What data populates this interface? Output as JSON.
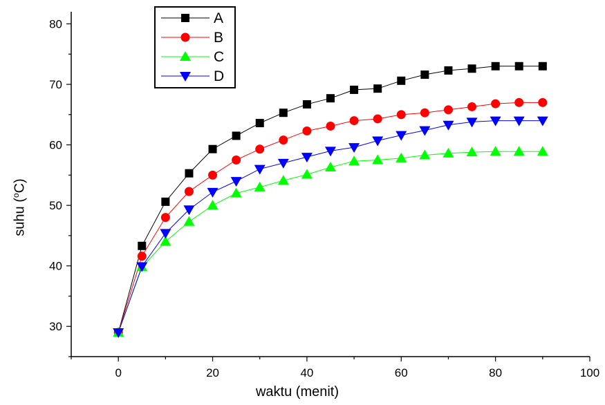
{
  "colors": {
    "A": "#000000",
    "B": "#ff0000",
    "C": "#00ff00",
    "D": "#0000ff",
    "axis": "#000000"
  },
  "chart_data": {
    "type": "line",
    "xlabel": "waktu (menit)",
    "ylabel_prefix": "suhu (",
    "ylabel_sup": "o",
    "ylabel_suffix": "C)",
    "xlim": [
      -10,
      100
    ],
    "ylim": [
      25,
      82
    ],
    "xticks": [
      0,
      20,
      40,
      60,
      80,
      100
    ],
    "yticks": [
      30,
      40,
      50,
      60,
      70,
      80
    ],
    "x": [
      0,
      5,
      10,
      15,
      20,
      25,
      30,
      35,
      40,
      45,
      50,
      55,
      60,
      65,
      70,
      75,
      80,
      85,
      90
    ],
    "series": [
      {
        "name": "A",
        "marker": "square",
        "values": [
          29,
          43.3,
          50.6,
          55.3,
          59.3,
          61.5,
          63.6,
          65.3,
          66.7,
          67.7,
          69.1,
          69.3,
          70.6,
          71.6,
          72.3,
          72.6,
          73,
          73,
          73
        ]
      },
      {
        "name": "B",
        "marker": "circle",
        "values": [
          29,
          41.6,
          48,
          52.3,
          55,
          57.5,
          59.3,
          60.8,
          62.3,
          63.1,
          64,
          64.3,
          65,
          65.3,
          65.8,
          66.3,
          66.8,
          67,
          67
        ]
      },
      {
        "name": "C",
        "marker": "triangle-up",
        "values": [
          29,
          39.8,
          44,
          47.3,
          50,
          52,
          53,
          54.1,
          55.1,
          56.3,
          57.3,
          57.5,
          57.8,
          58.3,
          58.6,
          58.8,
          58.9,
          58.9,
          58.9
        ]
      },
      {
        "name": "D",
        "marker": "triangle-down",
        "values": [
          29,
          39.9,
          45.4,
          49.3,
          52.2,
          54,
          56,
          57,
          58,
          59,
          59.6,
          60.7,
          61.6,
          62.4,
          63.3,
          63.8,
          64,
          64,
          64
        ]
      }
    ],
    "legend": "top-left inside",
    "grid": false
  }
}
